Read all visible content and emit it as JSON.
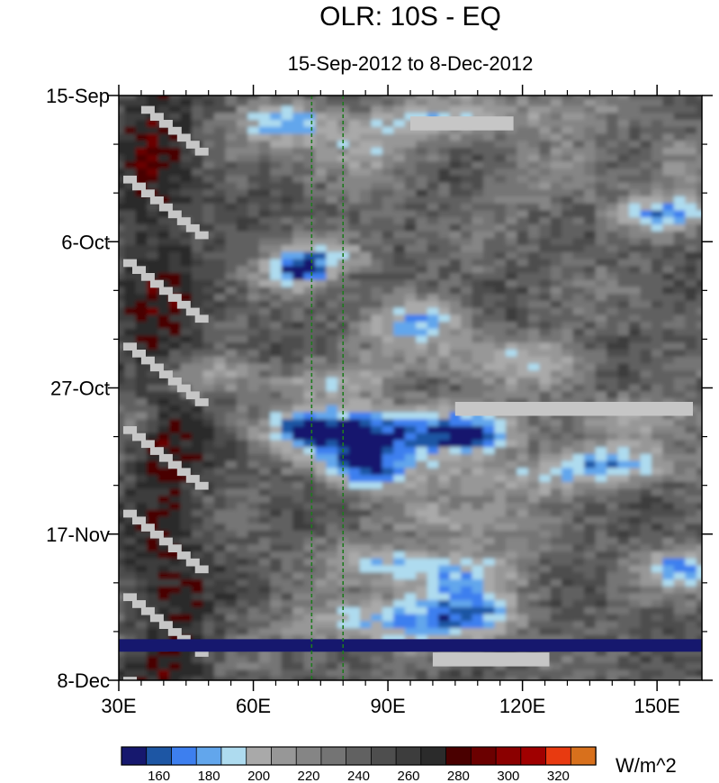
{
  "chart_data": {
    "type": "heatmap",
    "title": "OLR: 10S - EQ",
    "subtitle": "15-Sep-2012 to 8-Dec-2012",
    "x_tick_labels": [
      "30E",
      "60E",
      "90E",
      "120E",
      "150E"
    ],
    "x_tick_values": [
      30,
      60,
      90,
      120,
      150
    ],
    "xlim": [
      30,
      160
    ],
    "y_tick_labels": [
      "15-Sep",
      "6-Oct",
      "27-Oct",
      "17-Nov",
      "8-Dec"
    ],
    "ylim": [
      "15-Sep-2012",
      "8-Dec-2012"
    ],
    "y_reversed": true,
    "vertical_lines_lon": [
      73,
      80
    ],
    "colorbar": {
      "levels": [
        150,
        160,
        170,
        180,
        190,
        200,
        210,
        220,
        230,
        240,
        250,
        260,
        270,
        280,
        290,
        300,
        310,
        320,
        330
      ],
      "label_values": [
        160,
        180,
        200,
        220,
        240,
        260,
        280,
        300,
        320
      ],
      "labels": [
        "160",
        "180",
        "200",
        "220",
        "240",
        "260",
        "280",
        "300",
        "320"
      ],
      "colors": [
        "#16186e",
        "#1d56a4",
        "#3d7fef",
        "#62a6ec",
        "#aedbef",
        "#a9a9a9",
        "#979797",
        "#858585",
        "#747474",
        "#616161",
        "#4e4e4e",
        "#3d3d3d",
        "#2b2b2b",
        "#4a0000",
        "#6b0000",
        "#8b0000",
        "#a00000",
        "#e83a10",
        "#d8701c"
      ],
      "units": "W/m^2"
    },
    "missing_color": "#c6c6c6",
    "features": {
      "wet_band_date": "3-Dec-2012",
      "missing_blocks": [
        {
          "lon": [
            95,
            118
          ],
          "date": "19-Sep-2012"
        },
        {
          "lon": [
            105,
            158
          ],
          "date": "30-Oct-2012"
        },
        {
          "lon": [
            100,
            126
          ],
          "date": "5-Dec-2012"
        }
      ]
    }
  }
}
